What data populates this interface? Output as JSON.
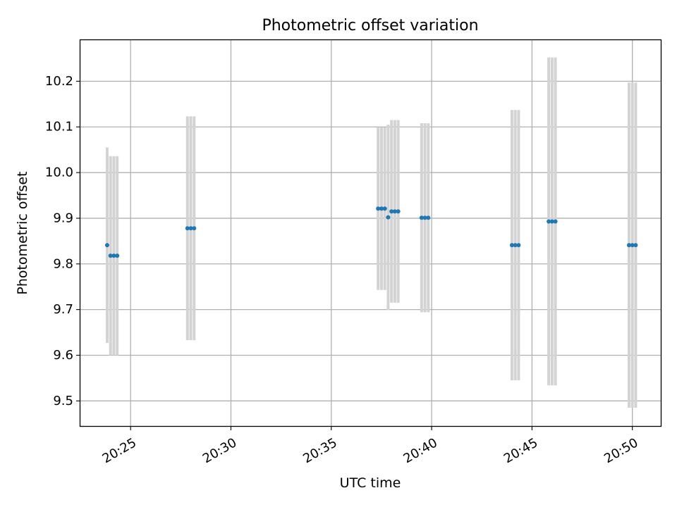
{
  "chart_data": {
    "type": "scatter",
    "title": "Photometric offset variation",
    "xlabel": "UTC time",
    "ylabel": "Photometric offset",
    "x_ticks": [
      "20:25",
      "20:30",
      "20:35",
      "20:40",
      "20:45",
      "20:50"
    ],
    "y_ticks": [
      "9.5",
      "9.6",
      "9.7",
      "9.8",
      "9.9",
      "10.0",
      "10.1",
      "10.2"
    ],
    "xlim": [
      "20:22:30",
      "20:51:25"
    ],
    "ylim": [
      9.445,
      10.29
    ],
    "grid": true,
    "marker_color": "#1f77b4",
    "errorbar_color": "#d3d3d3",
    "points": [
      {
        "time": "20:23:50",
        "value": 9.841,
        "error": 0.214
      },
      {
        "time": "20:24:00",
        "value": 9.818,
        "error": 0.218
      },
      {
        "time": "20:24:10",
        "value": 9.818,
        "error": 0.218
      },
      {
        "time": "20:24:20",
        "value": 9.818,
        "error": 0.218
      },
      {
        "time": "20:27:50",
        "value": 9.878,
        "error": 0.245
      },
      {
        "time": "20:28:00",
        "value": 9.878,
        "error": 0.245
      },
      {
        "time": "20:28:10",
        "value": 9.878,
        "error": 0.245
      },
      {
        "time": "20:37:20",
        "value": 9.921,
        "error": 0.178
      },
      {
        "time": "20:37:30",
        "value": 9.921,
        "error": 0.178
      },
      {
        "time": "20:37:40",
        "value": 9.921,
        "error": 0.178
      },
      {
        "time": "20:37:50",
        "value": 9.902,
        "error": 0.203
      },
      {
        "time": "20:38:00",
        "value": 9.915,
        "error": 0.2
      },
      {
        "time": "20:38:10",
        "value": 9.915,
        "error": 0.2
      },
      {
        "time": "20:38:20",
        "value": 9.915,
        "error": 0.2
      },
      {
        "time": "20:39:30",
        "value": 9.901,
        "error": 0.207
      },
      {
        "time": "20:39:40",
        "value": 9.901,
        "error": 0.207
      },
      {
        "time": "20:39:50",
        "value": 9.901,
        "error": 0.207
      },
      {
        "time": "20:44:00",
        "value": 9.841,
        "error": 0.296
      },
      {
        "time": "20:44:10",
        "value": 9.841,
        "error": 0.296
      },
      {
        "time": "20:44:20",
        "value": 9.841,
        "error": 0.296
      },
      {
        "time": "20:45:50",
        "value": 9.893,
        "error": 0.359
      },
      {
        "time": "20:46:00",
        "value": 9.893,
        "error": 0.359
      },
      {
        "time": "20:46:10",
        "value": 9.893,
        "error": 0.359
      },
      {
        "time": "20:49:50",
        "value": 9.841,
        "error": 0.356
      },
      {
        "time": "20:50:00",
        "value": 9.841,
        "error": 0.356
      },
      {
        "time": "20:50:10",
        "value": 9.841,
        "error": 0.356
      }
    ]
  }
}
